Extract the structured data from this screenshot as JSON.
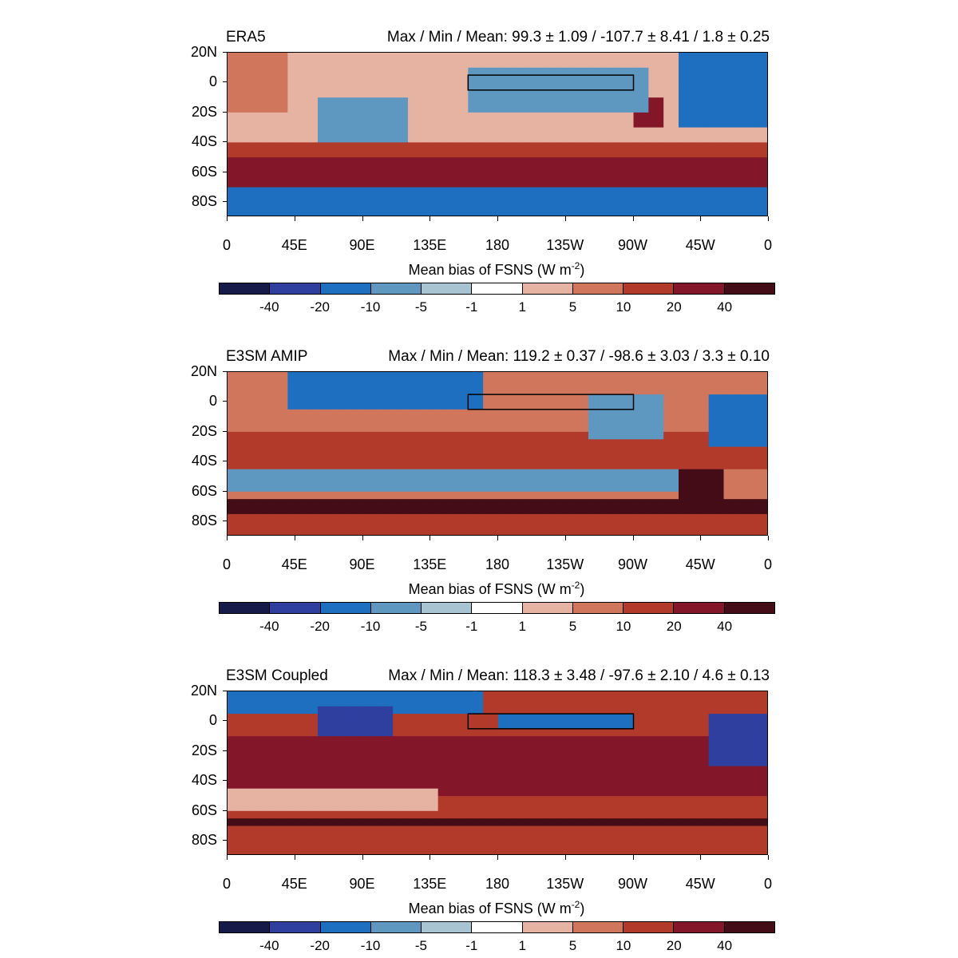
{
  "figure": {
    "axes": {
      "lon_labels": [
        "0",
        "45E",
        "90E",
        "135E",
        "180",
        "135W",
        "90W",
        "45W",
        "0"
      ],
      "lat_labels": [
        "20N",
        "0",
        "20S",
        "40S",
        "60S",
        "80S"
      ],
      "lat_values": [
        20,
        0,
        -20,
        -40,
        -60,
        -80
      ],
      "lon_range": [
        0,
        360
      ],
      "lat_range": [
        -90,
        20
      ]
    },
    "colorbar": {
      "title_prefix": "Mean bias of FSNS (W m",
      "title_exponent": "-2",
      "title_suffix": ")",
      "labels": [
        "-40",
        "-20",
        "-10",
        "-5",
        "-1",
        "1",
        "5",
        "10",
        "20",
        "40"
      ],
      "colors": [
        "#161a48",
        "#2f3fa0",
        "#1f6fc0",
        "#5e98c0",
        "#a8c4d2",
        "#ffffff",
        "#e6b3a3",
        "#d0765c",
        "#b23a2a",
        "#831628",
        "#440c16"
      ]
    },
    "box_region": {
      "lon_range": [
        160,
        270
      ],
      "lat_range": [
        -5,
        5
      ]
    },
    "panels": [
      {
        "name": "ERA5",
        "stats": "Max / Min / Mean:  99.3 ± 1.09 / -107.7 ± 8.41 / 1.8 ± 0.25"
      },
      {
        "name": "E3SM AMIP",
        "stats": "Max / Min / Mean:  119.2 ± 0.37 / -98.6 ± 3.03 / 3.3 ± 0.10"
      },
      {
        "name": "E3SM Coupled",
        "stats": "Max / Min / Mean:  118.3 ± 3.48 / -97.6 ± 2.10 / 4.6 ± 0.13"
      }
    ]
  }
}
